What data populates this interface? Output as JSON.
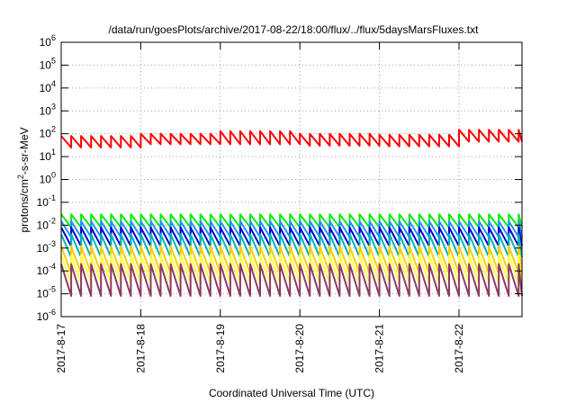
{
  "chart_data": {
    "type": "line",
    "title": "/data/run/goesPlots/archive/2017-08-22/18:00/flux/../flux/5daysMarsFluxes.txt",
    "xlabel": "Coordinated Universal Time (UTC)",
    "ylabel": {
      "prefix": "protons/cm",
      "sup": "2",
      "suffix": "-s-sr-MeV"
    },
    "xscale": "time",
    "yscale": "log",
    "xlim": [
      "2017-08-17T00:00",
      "2017-08-22T19:00"
    ],
    "ylim": [
      1e-06,
      1000000.0
    ],
    "grid": true,
    "legend": "none",
    "x_ticks": [
      "2017-8-17",
      "2017-8-18",
      "2017-8-19",
      "2017-8-20",
      "2017-8-21",
      "2017-8-22"
    ],
    "y_ticks": [
      {
        "base": "10",
        "exp": "6"
      },
      {
        "base": "10",
        "exp": "5"
      },
      {
        "base": "10",
        "exp": "4"
      },
      {
        "base": "10",
        "exp": "3"
      },
      {
        "base": "10",
        "exp": "2"
      },
      {
        "base": "10",
        "exp": "1"
      },
      {
        "base": "10",
        "exp": "0"
      },
      {
        "base": "10",
        "exp": "-1"
      },
      {
        "base": "10",
        "exp": "-2"
      },
      {
        "base": "10",
        "exp": "-3"
      },
      {
        "base": "10",
        "exp": "-4"
      },
      {
        "base": "10",
        "exp": "-5"
      },
      {
        "base": "10",
        "exp": "-6"
      }
    ],
    "series": [
      {
        "color": "#ff0000",
        "shape": "sawtooth",
        "period_hours": 3,
        "segments": [
          {
            "from": "2017-08-17T00:00",
            "to": "2017-08-18T00:00",
            "high": 80,
            "low": 25
          },
          {
            "from": "2017-08-18T00:00",
            "to": "2017-08-19T00:00",
            "high": 100,
            "low": 35
          },
          {
            "from": "2017-08-19T00:00",
            "to": "2017-08-20T00:00",
            "high": 130,
            "low": 35
          },
          {
            "from": "2017-08-20T00:00",
            "to": "2017-08-21T00:00",
            "high": 100,
            "low": 30
          },
          {
            "from": "2017-08-21T00:00",
            "to": "2017-08-22T00:00",
            "high": 90,
            "low": 28
          },
          {
            "from": "2017-08-22T00:00",
            "to": "2017-08-22T19:00",
            "high": 150,
            "low": 45
          }
        ]
      },
      {
        "color": "#00ee00",
        "shape": "sawtooth",
        "period_hours": 3,
        "high": 0.03,
        "low": 0.008
      },
      {
        "color": "#1e90ff",
        "shape": "sawtooth",
        "period_hours": 3,
        "high": 0.015,
        "low": 0.003
      },
      {
        "color": "#0000cd",
        "shape": "sawtooth",
        "period_hours": 3,
        "high": 0.008,
        "low": 0.0012
      },
      {
        "color": "#00b3b3",
        "shape": "sawtooth",
        "period_hours": 3,
        "high": 0.004,
        "low": 0.0004
      },
      {
        "color": "#ffcc00",
        "shape": "sawtooth",
        "period_hours": 3,
        "high": 0.0012,
        "low": 8e-05
      },
      {
        "color": "#ffff44",
        "shape": "sawtooth",
        "period_hours": 3,
        "high": 0.0005,
        "low": 3e-05
      },
      {
        "color": "#8b3a62",
        "shape": "sawtooth",
        "period_hours": 3,
        "high": 0.0002,
        "low": 8e-06
      }
    ]
  }
}
